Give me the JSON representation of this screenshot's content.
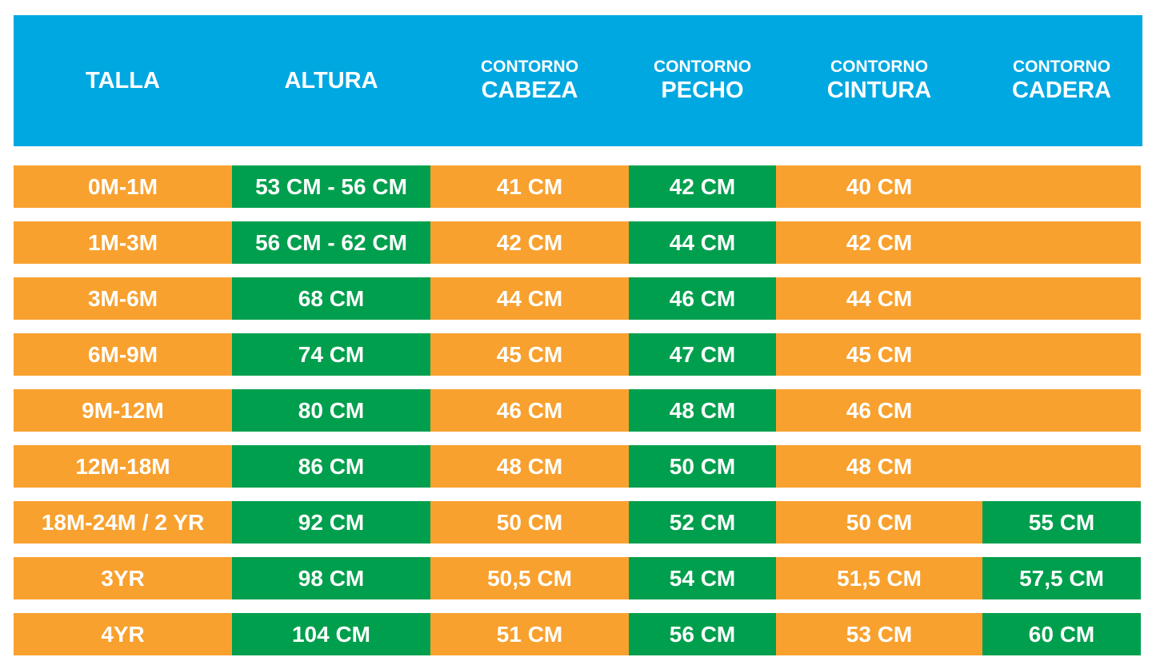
{
  "header": [
    {
      "main": "TALLA"
    },
    {
      "main": "ALTURA"
    },
    {
      "top": "CONTORNO",
      "main": "CABEZA"
    },
    {
      "top": "CONTORNO",
      "main": "PECHO"
    },
    {
      "top": "CONTORNO",
      "main": "CINTURA"
    },
    {
      "top": "CONTORNO",
      "main": "CADERA"
    }
  ],
  "table": {
    "rows": [
      [
        "0M-1M",
        "53 CM - 56 CM",
        "41 CM",
        "42 CM",
        "40 CM"
      ],
      [
        "1M-3M",
        "56 CM - 62 CM",
        "42 CM",
        "44 CM",
        "42 CM"
      ],
      [
        "3M-6M",
        "68 CM",
        "44 CM",
        "46 CM",
        "44 CM"
      ],
      [
        "6M-9M",
        "74 CM",
        "45 CM",
        "47 CM",
        "45 CM"
      ],
      [
        "9M-12M",
        "80 CM",
        "46 CM",
        "48 CM",
        "46 CM"
      ],
      [
        "12M-18M",
        "86 CM",
        "48 CM",
        "50 CM",
        "48 CM"
      ],
      [
        "18M-24M / 2 YR",
        "92 CM",
        "50 CM",
        "52 CM",
        "50 CM",
        "55 CM"
      ],
      [
        "3YR",
        "98 CM",
        "50,5 CM",
        "54 CM",
        "51,5 CM",
        "57,5 CM"
      ],
      [
        "4YR",
        "104 CM",
        "51 CM",
        "56 CM",
        "53 CM",
        "60 CM"
      ]
    ]
  }
}
